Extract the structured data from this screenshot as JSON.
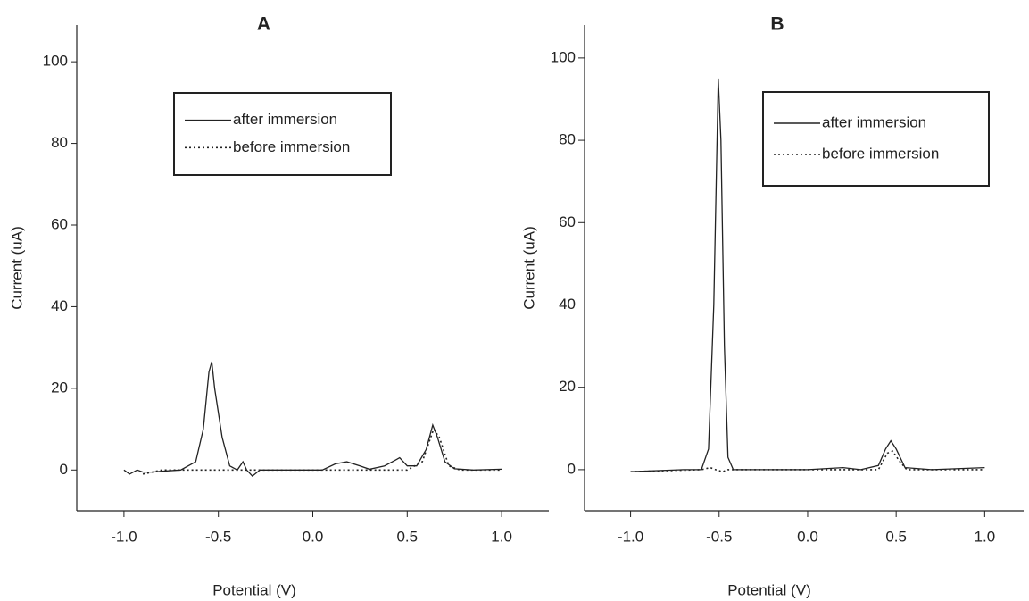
{
  "chart_data": [
    {
      "type": "line",
      "title": "A",
      "xlabel": "Potential (V)",
      "ylabel": "Current (uA)",
      "xlim": [
        -1.25,
        1.25
      ],
      "ylim": [
        -10,
        109
      ],
      "xticks": [
        {
          "value": -1.0,
          "label": "-1.0"
        },
        -0.5,
        {
          "value": 0,
          "label": "0.0"
        },
        0.5,
        {
          "value": 1.0,
          "label": "1.0"
        }
      ],
      "yticks": [
        0,
        20,
        40,
        60,
        80,
        100
      ],
      "legend": "upper center",
      "series": [
        {
          "name": "after immersion",
          "color": "#222222",
          "style": "solid",
          "x": [
            -1.0,
            -0.97,
            -0.93,
            -0.9,
            -0.85,
            -0.8,
            -0.7,
            -0.62,
            -0.58,
            -0.55,
            -0.535,
            -0.52,
            -0.48,
            -0.44,
            -0.4,
            -0.37,
            -0.35,
            -0.32,
            -0.28,
            -0.1,
            0.05,
            0.12,
            0.18,
            0.25,
            0.3,
            0.38,
            0.44,
            0.46,
            0.5,
            0.55,
            0.6,
            0.635,
            0.66,
            0.7,
            0.75,
            0.85,
            1.0
          ],
          "values": [
            0,
            -1,
            0,
            -0.5,
            -0.5,
            -0.3,
            0,
            2,
            10,
            24,
            26.5,
            20,
            8,
            1,
            0,
            2,
            0,
            -1.5,
            0,
            0,
            0,
            1.5,
            2,
            1,
            0.2,
            1,
            2.5,
            3,
            1,
            1,
            5,
            11,
            8,
            2,
            0.3,
            0,
            0.2
          ]
        },
        {
          "name": "before immersion",
          "color": "#222222",
          "style": "dotted",
          "x": [
            -0.9,
            -0.8,
            -0.4,
            0,
            0.3,
            0.5,
            0.58,
            0.64,
            0.67,
            0.72,
            0.78,
            1.0
          ],
          "values": [
            -1,
            0,
            0,
            0,
            0,
            0,
            2,
            10,
            8,
            1,
            0,
            0
          ]
        }
      ]
    },
    {
      "type": "line",
      "title": "B",
      "xlabel": "Potential (V)",
      "ylabel": "Current (uA)",
      "xlim": [
        -1.26,
        1.22
      ],
      "ylim": [
        -10,
        108
      ],
      "xticks": [
        {
          "value": -1.0,
          "label": "-1.0"
        },
        -0.5,
        {
          "value": 0,
          "label": "0.0"
        },
        0.5,
        {
          "value": 1.0,
          "label": "1.0"
        }
      ],
      "yticks": [
        0,
        20,
        40,
        60,
        80,
        100
      ],
      "legend": "upper right",
      "series": [
        {
          "name": "after immersion",
          "color": "#222222",
          "style": "solid",
          "x": [
            -1.0,
            -0.7,
            -0.6,
            -0.56,
            -0.53,
            -0.505,
            -0.49,
            -0.47,
            -0.45,
            -0.42,
            -0.3,
            0,
            0.2,
            0.3,
            0.4,
            0.44,
            0.47,
            0.5,
            0.55,
            0.7,
            1.0
          ],
          "values": [
            -0.5,
            0,
            0,
            5,
            40,
            95,
            80,
            30,
            3,
            0,
            0,
            0,
            0.5,
            0,
            1,
            5,
            7,
            5,
            0.5,
            0,
            0.5
          ]
        },
        {
          "name": "before immersion",
          "color": "#222222",
          "style": "dotted",
          "x": [
            -1.0,
            -0.6,
            -0.55,
            -0.52,
            -0.48,
            -0.45,
            0,
            0.4,
            0.45,
            0.48,
            0.52,
            0.56,
            1.0
          ],
          "values": [
            -0.5,
            0,
            0.5,
            0,
            -0.5,
            0,
            0,
            0,
            4,
            4.5,
            2,
            0,
            0
          ]
        }
      ]
    }
  ]
}
